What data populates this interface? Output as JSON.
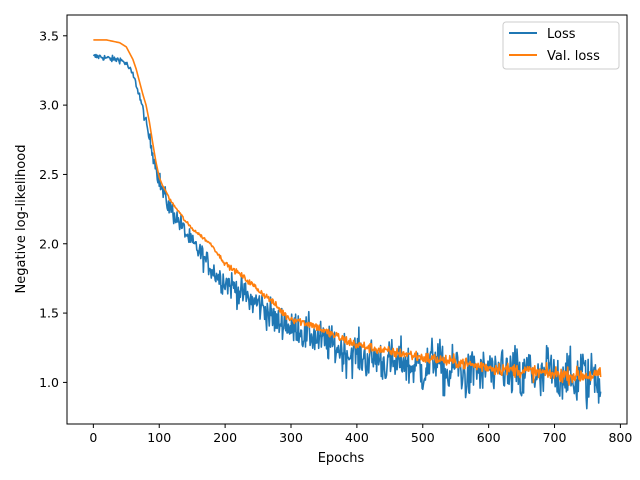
{
  "chart_data": {
    "type": "line",
    "title": "",
    "xlabel": "Epochs",
    "ylabel": "Negative log-likelihood",
    "xlim": [
      -40,
      810
    ],
    "ylim": [
      0.7,
      3.65
    ],
    "xticks": [
      0,
      100,
      200,
      300,
      400,
      500,
      600,
      700,
      800
    ],
    "yticks": [
      1.0,
      1.5,
      2.0,
      2.5,
      3.0,
      3.5
    ],
    "xtick_labels": [
      "0",
      "100",
      "200",
      "300",
      "400",
      "500",
      "600",
      "700",
      "800"
    ],
    "ytick_labels": [
      "1.0",
      "1.5",
      "2.0",
      "2.5",
      "3.0",
      "3.5"
    ],
    "grid": false,
    "legend_position": "top-right",
    "series": [
      {
        "name": "Loss",
        "color": "#1f77b4",
        "x": [
          0,
          10,
          20,
          30,
          40,
          50,
          60,
          65,
          70,
          75,
          80,
          85,
          90,
          95,
          100,
          105,
          110,
          115,
          120,
          130,
          140,
          150,
          160,
          170,
          180,
          190,
          200,
          210,
          220,
          230,
          240,
          250,
          260,
          270,
          280,
          290,
          300,
          310,
          320,
          330,
          340,
          350,
          360,
          370,
          380,
          390,
          400,
          410,
          420,
          430,
          440,
          450,
          460,
          470,
          480,
          490,
          500,
          510,
          520,
          530,
          540,
          550,
          560,
          570,
          580,
          590,
          600,
          610,
          620,
          630,
          640,
          650,
          660,
          670,
          680,
          690,
          700,
          710,
          720,
          730,
          740,
          750,
          760,
          770
        ],
        "y": [
          3.35,
          3.35,
          3.34,
          3.33,
          3.33,
          3.3,
          3.22,
          3.15,
          3.07,
          2.97,
          2.87,
          2.76,
          2.66,
          2.56,
          2.46,
          2.38,
          2.32,
          2.27,
          2.23,
          2.16,
          2.08,
          2.0,
          1.95,
          1.88,
          1.82,
          1.76,
          1.73,
          1.7,
          1.66,
          1.63,
          1.58,
          1.57,
          1.53,
          1.48,
          1.42,
          1.45,
          1.37,
          1.41,
          1.34,
          1.35,
          1.31,
          1.3,
          1.27,
          1.25,
          1.22,
          1.2,
          1.22,
          1.18,
          1.16,
          1.19,
          1.14,
          1.15,
          1.12,
          1.17,
          1.1,
          1.13,
          1.08,
          1.12,
          1.2,
          1.08,
          1.04,
          1.14,
          1.07,
          1.02,
          1.12,
          1.04,
          1.13,
          0.98,
          1.16,
          1.02,
          1.1,
          0.97,
          1.12,
          1.05,
          0.98,
          1.13,
          1.01,
          1.05,
          1.09,
          0.95,
          1.12,
          0.98,
          1.1,
          0.98
        ],
        "noise": [
          0.02,
          0.02,
          0.02,
          0.02,
          0.02,
          0.02,
          0.02,
          0.02,
          0.03,
          0.03,
          0.03,
          0.04,
          0.05,
          0.05,
          0.06,
          0.06,
          0.06,
          0.06,
          0.06,
          0.06,
          0.06,
          0.06,
          0.07,
          0.07,
          0.07,
          0.08,
          0.08,
          0.09,
          0.09,
          0.09,
          0.1,
          0.1,
          0.1,
          0.1,
          0.1,
          0.1,
          0.1,
          0.1,
          0.11,
          0.11,
          0.11,
          0.11,
          0.11,
          0.12,
          0.12,
          0.12,
          0.12,
          0.13,
          0.13,
          0.13,
          0.13,
          0.13,
          0.13,
          0.13,
          0.13,
          0.13,
          0.14,
          0.14,
          0.14,
          0.14,
          0.14,
          0.14,
          0.14,
          0.14,
          0.14,
          0.14,
          0.14,
          0.14,
          0.15,
          0.15,
          0.15,
          0.15,
          0.15,
          0.15,
          0.15,
          0.15,
          0.15,
          0.15,
          0.15,
          0.15,
          0.16,
          0.16,
          0.16,
          0.16
        ]
      },
      {
        "name": "Val. loss",
        "color": "#ff7f0e",
        "x": [
          0,
          10,
          20,
          30,
          40,
          50,
          60,
          65,
          70,
          75,
          80,
          85,
          90,
          95,
          100,
          105,
          110,
          115,
          120,
          130,
          140,
          150,
          160,
          170,
          180,
          190,
          200,
          210,
          220,
          230,
          240,
          250,
          260,
          270,
          280,
          290,
          300,
          310,
          320,
          330,
          340,
          350,
          360,
          370,
          380,
          390,
          400,
          410,
          420,
          430,
          440,
          450,
          460,
          470,
          480,
          490,
          500,
          510,
          520,
          530,
          540,
          550,
          560,
          570,
          580,
          590,
          600,
          610,
          620,
          630,
          640,
          650,
          660,
          670,
          680,
          690,
          700,
          710,
          720,
          730,
          740,
          750,
          760,
          770
        ],
        "y": [
          3.47,
          3.47,
          3.47,
          3.46,
          3.45,
          3.42,
          3.33,
          3.26,
          3.17,
          3.08,
          3.0,
          2.88,
          2.73,
          2.59,
          2.48,
          2.42,
          2.38,
          2.33,
          2.29,
          2.23,
          2.16,
          2.11,
          2.07,
          2.03,
          1.99,
          1.92,
          1.86,
          1.82,
          1.79,
          1.75,
          1.71,
          1.67,
          1.63,
          1.59,
          1.54,
          1.49,
          1.46,
          1.45,
          1.43,
          1.42,
          1.4,
          1.37,
          1.35,
          1.33,
          1.31,
          1.29,
          1.27,
          1.26,
          1.25,
          1.24,
          1.23,
          1.22,
          1.21,
          1.21,
          1.2,
          1.19,
          1.18,
          1.17,
          1.17,
          1.16,
          1.15,
          1.15,
          1.14,
          1.13,
          1.12,
          1.12,
          1.11,
          1.1,
          1.1,
          1.09,
          1.09,
          1.08,
          1.08,
          1.07,
          1.07,
          1.06,
          1.06,
          1.06,
          1.05,
          1.05,
          1.05,
          1.05,
          1.05,
          1.05
        ],
        "noise": [
          0.0,
          0.0,
          0.0,
          0.0,
          0.0,
          0.0,
          0.0,
          0.0,
          0.0,
          0.0,
          0.0,
          0.0,
          0.0,
          0.0,
          0.0,
          0.0,
          0.0,
          0.01,
          0.01,
          0.01,
          0.01,
          0.01,
          0.01,
          0.01,
          0.01,
          0.01,
          0.015,
          0.015,
          0.015,
          0.02,
          0.02,
          0.02,
          0.02,
          0.02,
          0.02,
          0.025,
          0.025,
          0.025,
          0.025,
          0.025,
          0.025,
          0.025,
          0.03,
          0.03,
          0.03,
          0.03,
          0.03,
          0.03,
          0.03,
          0.03,
          0.03,
          0.03,
          0.03,
          0.03,
          0.035,
          0.035,
          0.035,
          0.035,
          0.035,
          0.035,
          0.035,
          0.035,
          0.04,
          0.04,
          0.04,
          0.04,
          0.04,
          0.04,
          0.04,
          0.04,
          0.04,
          0.04,
          0.045,
          0.045,
          0.045,
          0.045,
          0.045,
          0.045,
          0.045,
          0.045,
          0.045,
          0.045,
          0.045,
          0.045
        ]
      }
    ]
  }
}
